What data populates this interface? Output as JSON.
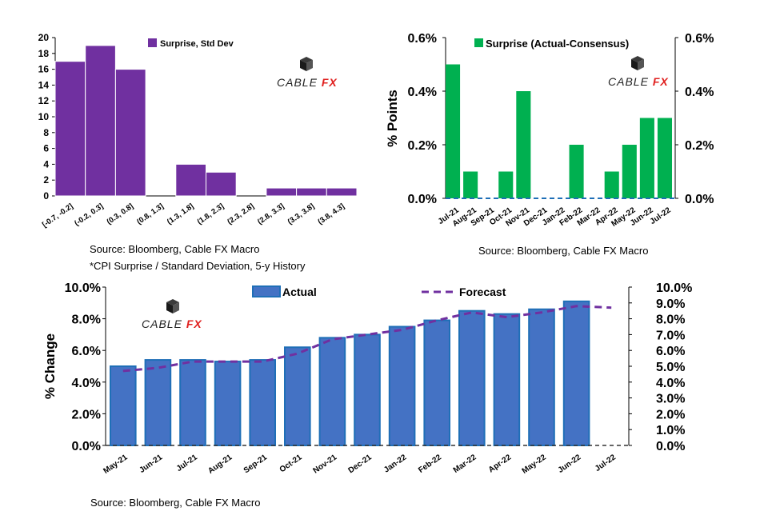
{
  "logo_text": "CABLE FX",
  "colors": {
    "histogram": "#7030A0",
    "surprise": "#00B050",
    "actual": "#4472C4",
    "actual_edge": "#1F6FB7",
    "forecast": "#7030A0",
    "logo_red": "#E0201F"
  },
  "sources": {
    "hist": "Source: Bloomberg, Cable FX Macro",
    "hist_note": "*CPI Surprise / Standard Deviation, 5-y History",
    "surprise": "Source: Bloomberg, Cable FX Macro",
    "cpi": "Source: Bloomberg, Cable FX Macro"
  },
  "chart_data": [
    {
      "id": "histogram",
      "type": "bar",
      "categories": [
        "[-0.7, -0.2]",
        "(-0.2, 0.3]",
        "(0.3, 0.8]",
        "(0.8, 1.3]",
        "(1.3, 1.8]",
        "(1.8, 2.3]",
        "(2.3, 2.8]",
        "(2.8, 3.3]",
        "(3.3, 3.8]",
        "(3.8, 4.3]"
      ],
      "series": [
        {
          "name": "Surprise, Std Dev",
          "values": [
            17,
            19,
            16,
            0,
            4,
            3,
            0,
            1,
            1,
            1
          ]
        }
      ],
      "ylim": [
        0,
        20
      ],
      "yticks": [
        "0",
        "2",
        "4",
        "6",
        "8",
        "10",
        "12",
        "14",
        "16",
        "18",
        "20"
      ],
      "legend": "top"
    },
    {
      "id": "surprise",
      "type": "bar",
      "categories": [
        "Jul-21",
        "Aug-21",
        "Sep-21",
        "Oct-21",
        "Nov-21",
        "Dec-21",
        "Jan-22",
        "Feb-22",
        "Mar-22",
        "Apr-22",
        "May-22",
        "Jun-22",
        "Jul-22"
      ],
      "series": [
        {
          "name": "Surprise (Actual-Consensus)",
          "values": [
            0.5,
            0.1,
            0.0,
            0.1,
            0.4,
            0.0,
            0.0,
            0.2,
            0.0,
            0.1,
            0.2,
            0.3,
            0.3
          ]
        }
      ],
      "ylabel": "% Points",
      "ylim": [
        0,
        0.6
      ],
      "yticks": [
        "0.0%",
        "0.2%",
        "0.4%",
        "0.6%"
      ],
      "legend": "top"
    },
    {
      "id": "cpi",
      "type": "bar",
      "categories": [
        "May-21",
        "Jun-21",
        "Jul-21",
        "Aug-21",
        "Sep-21",
        "Oct-21",
        "Nov-21",
        "Dec-21",
        "Jan-22",
        "Feb-22",
        "Mar-22",
        "Apr-22",
        "May-22",
        "Jun-22",
        "Jul-22"
      ],
      "series": [
        {
          "name": "Actual",
          "values": [
            5.0,
            5.4,
            5.4,
            5.3,
            5.4,
            6.2,
            6.8,
            7.0,
            7.5,
            7.9,
            8.5,
            8.3,
            8.6,
            9.1,
            null
          ]
        },
        {
          "name": "Forecast",
          "type": "line",
          "values": [
            4.7,
            4.9,
            5.3,
            5.3,
            5.3,
            5.8,
            6.7,
            7.0,
            7.3,
            7.9,
            8.4,
            8.1,
            8.4,
            8.8,
            8.7
          ]
        }
      ],
      "ylabel": "% Change",
      "ylim": [
        0,
        10
      ],
      "yticks_left": [
        "0.0%",
        "2.0%",
        "4.0%",
        "6.0%",
        "8.0%",
        "10.0%"
      ],
      "yticks_right": [
        "0.0%",
        "1.0%",
        "2.0%",
        "3.0%",
        "4.0%",
        "5.0%",
        "6.0%",
        "7.0%",
        "8.0%",
        "9.0%",
        "10.0%"
      ],
      "legend": "top"
    }
  ]
}
